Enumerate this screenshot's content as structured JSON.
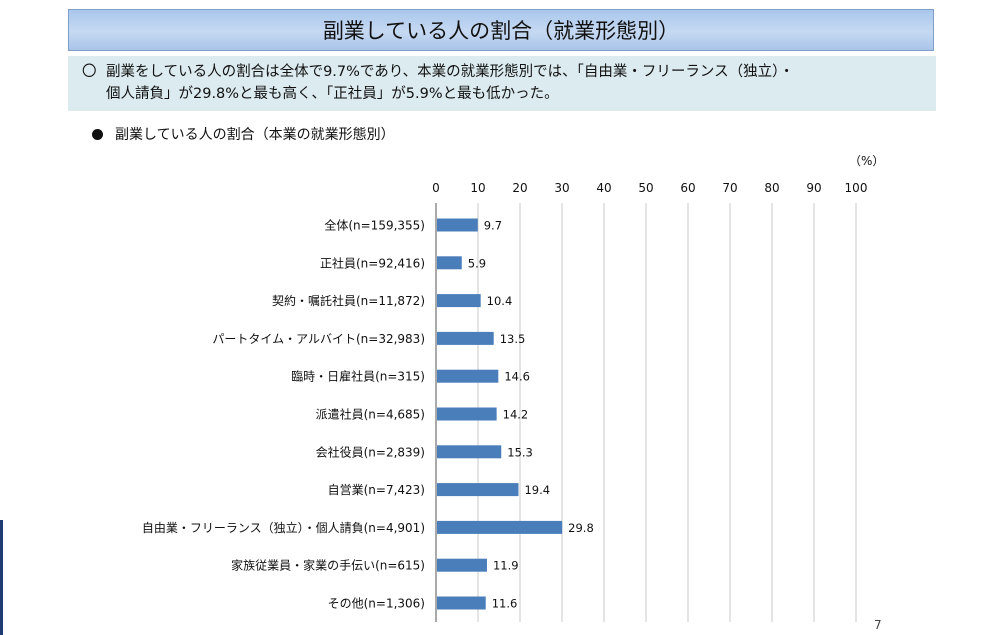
{
  "header": {
    "title": "副業している人の割合（就業形態別）"
  },
  "summary": {
    "mark": "〇",
    "line1": "副業をしている人の割合は全体で9.7%であり、本業の就業形態別では、「自由業・フリーランス（独立）・",
    "line2": "個人請負」が29.8%と最も高く、「正社員」が5.9%と最も低かった。"
  },
  "chart_subtitle": "副業している人の割合（本業の就業形態別）",
  "unit_label": "（%）",
  "page_number": "7",
  "colors": {
    "bar": "#4a7ebb",
    "banner": "#b7d0ef",
    "summary_bg": "#dcebf0"
  },
  "chart_data": {
    "type": "bar",
    "orientation": "horizontal",
    "title": "副業している人の割合（本業の就業形態別）",
    "xlim": [
      0,
      100
    ],
    "x_ticks": [
      0,
      10,
      20,
      30,
      40,
      50,
      60,
      70,
      80,
      90,
      100
    ],
    "x_axis_position": "top",
    "grid": true,
    "categories": [
      "全体(n=159,355)",
      "正社員(n=92,416)",
      "契約・嘱託社員(n=11,872)",
      "パートタイム・アルバイト(n=32,983)",
      "臨時・日雇社員(n=315)",
      "派遣社員(n=4,685)",
      "会社役員(n=2,839)",
      "自営業(n=7,423)",
      "自由業・フリーランス（独立）・個人請負(n=4,901)",
      "家族従業員・家業の手伝い(n=615)",
      "その他(n=1,306)"
    ],
    "values": [
      9.7,
      5.9,
      10.4,
      13.5,
      14.6,
      14.2,
      15.3,
      19.4,
      29.8,
      11.9,
      11.6
    ]
  }
}
